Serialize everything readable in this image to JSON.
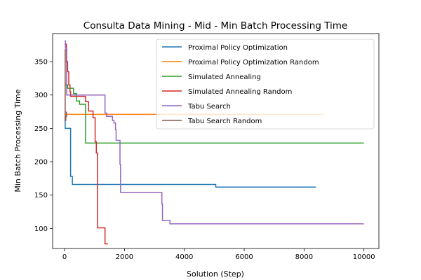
{
  "chart_data": {
    "type": "line",
    "title": "Consulta Data Mining - Mid - Min Batch Processing Time",
    "xlabel": "Solution (Step)",
    "ylabel": "Min Batch Processing Time",
    "xlim": [
      -400,
      10500
    ],
    "ylim": [
      70,
      392
    ],
    "xticks": [
      0,
      2000,
      4000,
      6000,
      8000,
      10000
    ],
    "yticks": [
      100,
      150,
      200,
      250,
      300,
      350
    ],
    "grid": false,
    "legend_position": "top-right",
    "series": [
      {
        "name": "Proximal Policy Optimization",
        "color": "#1f77b4",
        "points": [
          [
            0,
            265
          ],
          [
            20,
            265
          ],
          [
            20,
            250
          ],
          [
            200,
            250
          ],
          [
            200,
            178
          ],
          [
            260,
            178
          ],
          [
            260,
            166
          ],
          [
            5050,
            166
          ],
          [
            5050,
            162
          ],
          [
            8400,
            162
          ]
        ]
      },
      {
        "name": "Proximal Policy Optimization Random",
        "color": "#ff7f0e",
        "points": [
          [
            0,
            271
          ],
          [
            8650,
            271
          ]
        ]
      },
      {
        "name": "Simulated Annealing",
        "color": "#2ca02c",
        "points": [
          [
            0,
            315
          ],
          [
            100,
            315
          ],
          [
            100,
            310
          ],
          [
            300,
            310
          ],
          [
            300,
            302
          ],
          [
            400,
            302
          ],
          [
            400,
            291
          ],
          [
            500,
            291
          ],
          [
            500,
            286
          ],
          [
            700,
            286
          ],
          [
            700,
            228
          ],
          [
            10000,
            228
          ]
        ]
      },
      {
        "name": "Simulated Annealing Random",
        "color": "#d62728",
        "points": [
          [
            0,
            376
          ],
          [
            60,
            376
          ],
          [
            60,
            350
          ],
          [
            100,
            350
          ],
          [
            100,
            335
          ],
          [
            140,
            335
          ],
          [
            140,
            315
          ],
          [
            180,
            315
          ],
          [
            180,
            305
          ],
          [
            200,
            305
          ],
          [
            200,
            298
          ],
          [
            700,
            298
          ],
          [
            700,
            290
          ],
          [
            800,
            290
          ],
          [
            800,
            276
          ],
          [
            950,
            276
          ],
          [
            950,
            266
          ],
          [
            1020,
            266
          ],
          [
            1020,
            230
          ],
          [
            1060,
            230
          ],
          [
            1060,
            213
          ],
          [
            1100,
            213
          ],
          [
            1100,
            101
          ],
          [
            1350,
            101
          ],
          [
            1350,
            77
          ],
          [
            1450,
            77
          ]
        ]
      },
      {
        "name": "Tabu Search",
        "color": "#9467bd",
        "points": [
          [
            0,
            381
          ],
          [
            30,
            381
          ],
          [
            30,
            370
          ],
          [
            70,
            370
          ],
          [
            70,
            300
          ],
          [
            1350,
            300
          ],
          [
            1350,
            273
          ],
          [
            1400,
            273
          ],
          [
            1400,
            268
          ],
          [
            1600,
            268
          ],
          [
            1600,
            262
          ],
          [
            1650,
            262
          ],
          [
            1650,
            258
          ],
          [
            1700,
            258
          ],
          [
            1700,
            248
          ],
          [
            1720,
            248
          ],
          [
            1720,
            232
          ],
          [
            1850,
            232
          ],
          [
            1850,
            196
          ],
          [
            1870,
            196
          ],
          [
            1870,
            154
          ],
          [
            3250,
            154
          ],
          [
            3250,
            137
          ],
          [
            3270,
            137
          ],
          [
            3270,
            112
          ],
          [
            3520,
            112
          ],
          [
            3520,
            107
          ],
          [
            10000,
            107
          ]
        ]
      },
      {
        "name": "Tabu Search Random",
        "color": "#8c564b",
        "points": [
          [
            0,
            368
          ],
          [
            20,
            368
          ],
          [
            20,
            262
          ],
          [
            40,
            262
          ],
          [
            40,
            268
          ],
          [
            60,
            268
          ],
          [
            60,
            275
          ]
        ]
      }
    ]
  }
}
